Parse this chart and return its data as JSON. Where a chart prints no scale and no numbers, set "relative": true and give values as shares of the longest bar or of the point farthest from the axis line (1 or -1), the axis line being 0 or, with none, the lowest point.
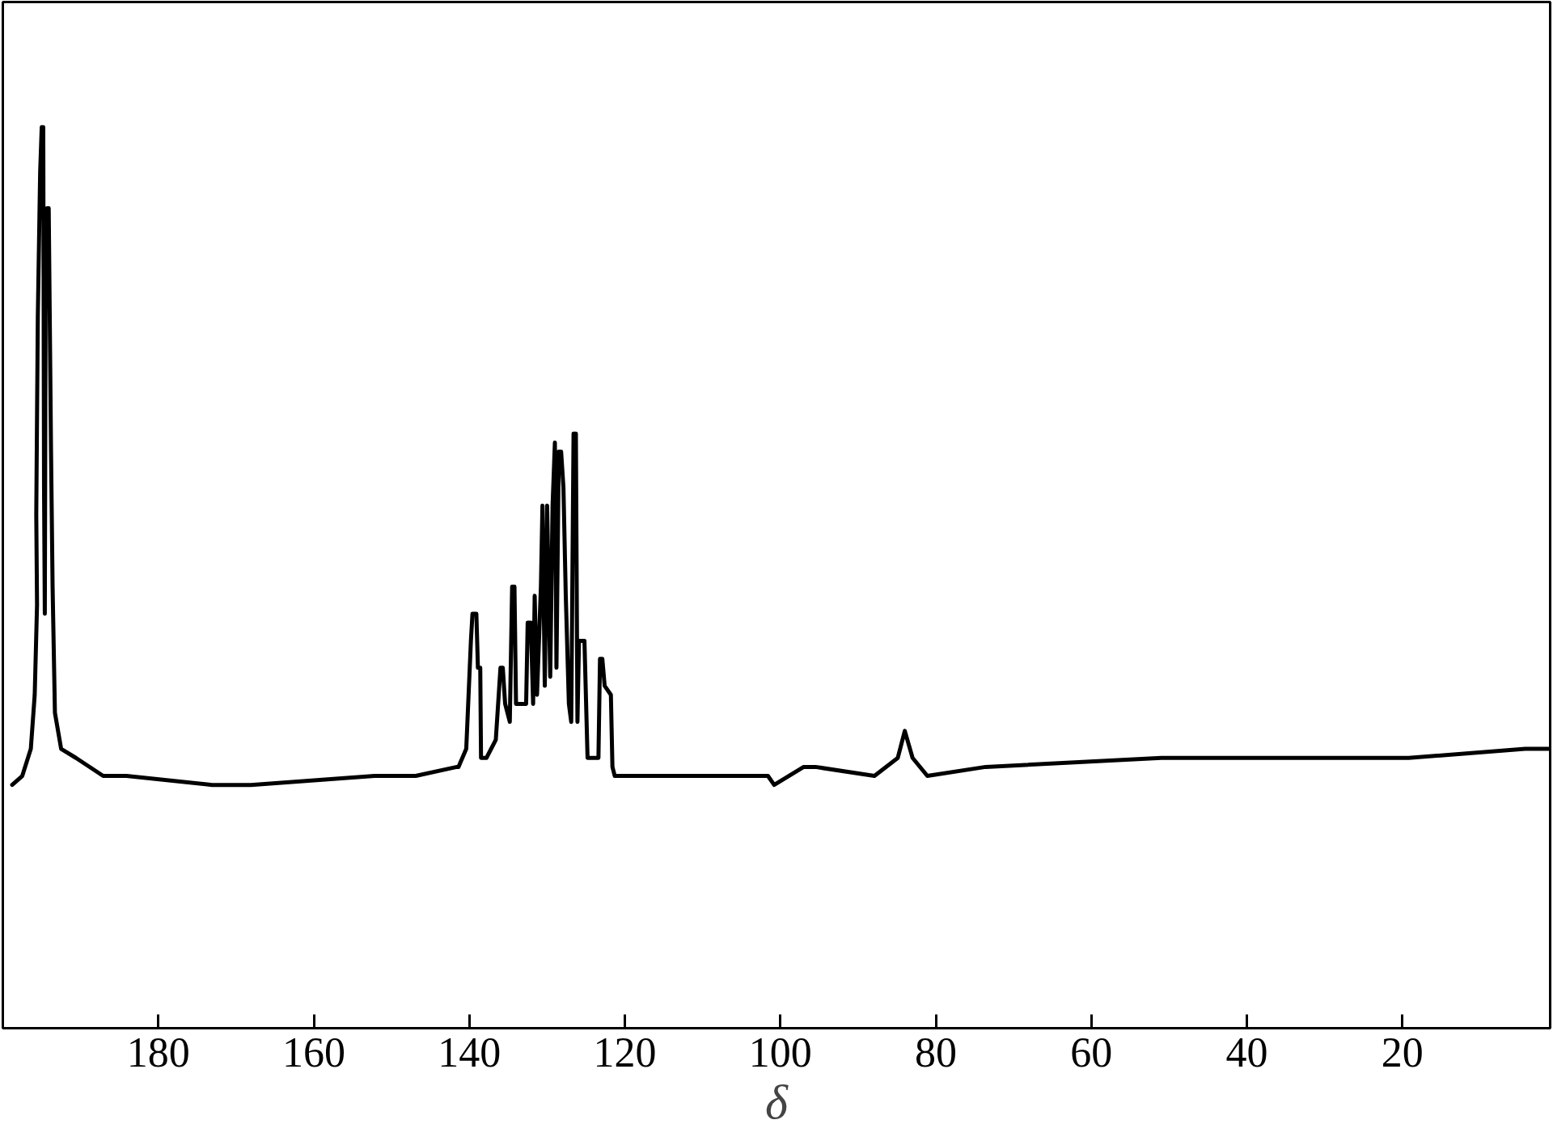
{
  "chart_data": {
    "type": "line",
    "xlabel": "δ",
    "relative": true,
    "xlim": [
      200,
      1
    ],
    "xticks": [
      180,
      160,
      140,
      120,
      100,
      80,
      60,
      40,
      20
    ],
    "x": [
      198.8,
      197.5,
      196.4,
      195.9,
      195.6,
      195.7,
      195.5,
      195.2,
      195.0,
      194.8,
      194.7,
      194.6,
      194.5,
      194.3,
      194.1,
      193.8,
      193.6,
      193.3,
      192.5,
      190.6,
      187.1,
      184.1,
      173.1,
      168.1,
      152.2,
      146.9,
      141.6,
      141.4,
      140.4,
      139.8,
      139.6,
      139.1,
      138.9,
      138.6,
      138.5,
      137.8,
      136.6,
      136.0,
      135.7,
      135.4,
      134.8,
      134.5,
      134.2,
      134.0,
      133.4,
      132.7,
      132.5,
      132.1,
      131.8,
      131.6,
      131.3,
      130.8,
      130.6,
      130.3,
      130.0,
      129.6,
      129.3,
      129.0,
      128.8,
      128.5,
      128.2,
      127.9,
      127.6,
      127.2,
      126.9,
      126.6,
      126.3,
      126.1,
      125.9,
      125.2,
      124.8,
      124.4,
      123.4,
      123.2,
      122.9,
      122.6,
      121.8,
      121.6,
      121.3,
      118.9,
      114.7,
      101.6,
      100.8,
      97.0,
      95.5,
      87.9,
      84.9,
      84.0,
      83.0,
      81.1,
      73.6,
      51.0,
      50.2,
      39.6,
      32.1,
      19.2,
      4.2,
      1.2
    ],
    "series": [
      {
        "color": "#000000",
        "values": [
          0.27,
          0.28,
          0.31,
          0.37,
          0.47,
          0.57,
          0.79,
          0.95,
          1.0,
          1.0,
          0.6,
          0.46,
          0.8,
          0.91,
          0.91,
          0.64,
          0.49,
          0.35,
          0.31,
          0.3,
          0.28,
          0.28,
          0.27,
          0.27,
          0.28,
          0.28,
          0.29,
          0.29,
          0.31,
          0.43,
          0.46,
          0.46,
          0.4,
          0.4,
          0.3,
          0.3,
          0.32,
          0.4,
          0.4,
          0.36,
          0.34,
          0.49,
          0.49,
          0.36,
          0.36,
          0.36,
          0.45,
          0.45,
          0.36,
          0.48,
          0.37,
          0.49,
          0.58,
          0.38,
          0.58,
          0.39,
          0.58,
          0.65,
          0.4,
          0.64,
          0.64,
          0.6,
          0.48,
          0.36,
          0.34,
          0.66,
          0.66,
          0.34,
          0.43,
          0.43,
          0.3,
          0.3,
          0.3,
          0.41,
          0.41,
          0.38,
          0.37,
          0.29,
          0.28,
          0.28,
          0.28,
          0.28,
          0.27,
          0.29,
          0.29,
          0.28,
          0.3,
          0.33,
          0.3,
          0.28,
          0.29,
          0.3,
          0.3,
          0.3,
          0.3,
          0.3,
          0.31,
          0.31
        ]
      }
    ]
  }
}
